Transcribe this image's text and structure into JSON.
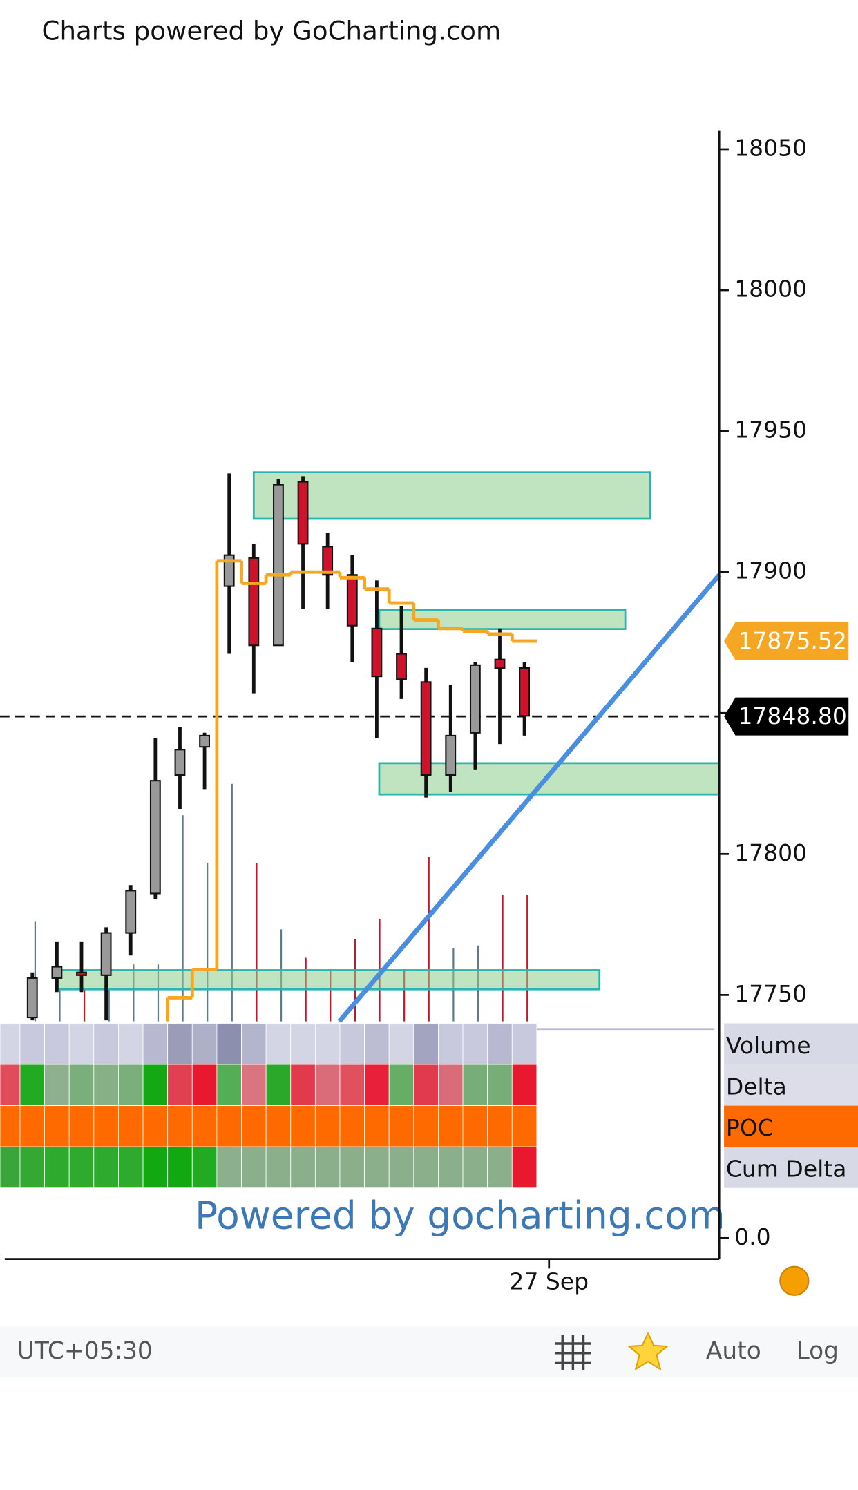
{
  "header": {
    "title": "Charts powered by GoCharting.com"
  },
  "chart_data": {
    "type": "candlestick",
    "categories": [
      null,
      null,
      null,
      null,
      null,
      null,
      null,
      null,
      null,
      null,
      null,
      null,
      null,
      null,
      null,
      null,
      null,
      null,
      null,
      null,
      null
    ],
    "open": [
      17742,
      17756,
      17758,
      17757,
      17772,
      17786,
      17828,
      17838,
      17895,
      17905,
      17874,
      17932,
      17909,
      17899,
      17880,
      17871,
      17861,
      17828,
      17843,
      17869,
      17866
    ],
    "high": [
      17758,
      17769,
      17769,
      17774,
      17789,
      17841,
      17845,
      17843,
      17935,
      17910,
      17933,
      17934,
      17914,
      17906,
      17897,
      17888,
      17866,
      17860,
      17868,
      17880,
      17868
    ],
    "low": [
      17741,
      17751,
      17751,
      17741,
      17764,
      17784,
      17816,
      17823,
      17871,
      17857,
      17874,
      17887,
      17887,
      17868,
      17841,
      17855,
      17820,
      17822,
      17830,
      17839,
      17842
    ],
    "close": [
      17756,
      17760,
      17757,
      17772,
      17787,
      17826,
      17837,
      17842,
      17906,
      17874,
      17931,
      17910,
      17899,
      17881,
      17863,
      17862,
      17828,
      17842,
      17867,
      17866,
      17849
    ],
    "up_color": "#999999",
    "down_color": "#d0112b",
    "xlim": [
      -1.12,
      27.92
    ],
    "xticks": [
      {
        "value": 21,
        "label": "27 Sep"
      }
    ],
    "ylim": [
      17740.6,
      18056.7
    ],
    "yticks": [
      17750,
      17800,
      17850,
      17900,
      17950,
      18000,
      18050
    ],
    "volume": {
      "ylim": [
        0,
        400
      ],
      "up_color": "#5f7a8a",
      "down_color": "#d0112b",
      "values": [
        105,
        35,
        35,
        35,
        60,
        60,
        217,
        167,
        250,
        167,
        97,
        67,
        55,
        87,
        108,
        55,
        173,
        77,
        80,
        133,
        133
      ]
    },
    "vwap": {
      "color": "#f5a623",
      "values": [
        null,
        null,
        null,
        null,
        null,
        null,
        17749,
        17759,
        17904,
        17896,
        17899,
        17900,
        17900,
        17898,
        17894,
        17889,
        17883,
        17880,
        17879,
        17878,
        17875.52
      ]
    },
    "zones": [
      {
        "low": 17918.9,
        "high": 17935.4,
        "from": 9.0,
        "to": 25.1
      },
      {
        "low": 17879.8,
        "high": 17886.5,
        "from": 14.1,
        "to": 24.1
      },
      {
        "low": 17821.1,
        "high": 17832.2,
        "from": 14.1,
        "to": 27.92
      },
      {
        "low": 17752.0,
        "high": 17758.8,
        "from": 1.0,
        "to": 23.05
      }
    ],
    "price_labels": [
      {
        "value": 17875.52,
        "label": "17875.52",
        "color": "#f5a623"
      },
      {
        "value": 17848.8,
        "label": "17848.80",
        "color": "#000000"
      }
    ],
    "footprint": [
      {
        "name": "Volume",
        "bg": "#d8d9e6",
        "cells": [
          "#d3d4e4",
          "#c8c9dc",
          "#c8c9dc",
          "#d3d4e4",
          "#c8c9dc",
          "#d3d4e4",
          "#b8b9d0",
          "#9a9cb8",
          "#aeb0c8",
          "#8c8fae",
          "#b3b5cc",
          "#d3d4e4",
          "#d3d4e4",
          "#d3d4e4",
          "#c8c9dc",
          "#bcbdd2",
          "#d3d4e4",
          "#a3a5c0",
          "#c8c9dc",
          "#c8c9dc",
          "#b8b9d0",
          "#c8c9dc"
        ]
      },
      {
        "name": "Delta",
        "bg": "#dcdde8",
        "cells": [
          "#e04c5c",
          "#22aa22",
          "#8fb08f",
          "#7aae7a",
          "#86b086",
          "#7aae7a",
          "#15a815",
          "#e0404f",
          "#e8192f",
          "#55ad55",
          "#d97480",
          "#2aa82a",
          "#e03a4c",
          "#d96c78",
          "#e0505e",
          "#e8203a",
          "#66ad66",
          "#e03a4c",
          "#d96c78",
          "#77ad77",
          "#77ad77",
          "#e8192f"
        ]
      },
      {
        "name": "POC",
        "bg": "#ff6a00",
        "cells": [
          "#ff6a00",
          "#ff6a00",
          "#ff6a00",
          "#ff6a00",
          "#ff6a00",
          "#ff6a00",
          "#ff6a00",
          "#ff6a00",
          "#ff6a00",
          "#ff6a00",
          "#ff6a00",
          "#ff6a00",
          "#ff6a00",
          "#ff6a00",
          "#ff6a00",
          "#ff6a00",
          "#ff6a00",
          "#ff6a00",
          "#ff6a00",
          "#ff6a00",
          "#ff6a00",
          "#ff6a00"
        ]
      },
      {
        "name": "Cum Delta",
        "bg": "#d8d9e6",
        "cells": [
          "#3aa53a",
          "#33a833",
          "#2eaa2e",
          "#2eaa2e",
          "#2eaa2e",
          "#2eaa2e",
          "#12a812",
          "#12a812",
          "#22aa22",
          "#8caf8c",
          "#8aaf8a",
          "#8aaf8a",
          "#8aaf8a",
          "#8aaf8a",
          "#8aaf8a",
          "#8aaf8a",
          "#8aaf8a",
          "#8aaf8a",
          "#8aaf8a",
          "#8aaf8a",
          "#8aaf8a",
          "#e8192f"
        ]
      }
    ],
    "lower_yticks": [
      {
        "value": 0,
        "label": "0.0"
      }
    ],
    "watermark": "Powered by gocharting.com"
  },
  "toolbar": {
    "timezone": "UTC+05:30",
    "auto": "Auto",
    "log": "Log"
  }
}
